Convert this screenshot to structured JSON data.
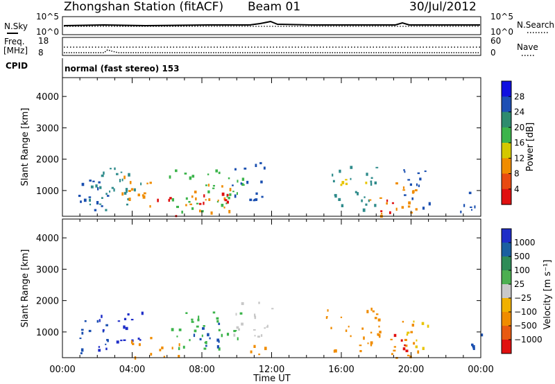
{
  "header": {
    "station": "Zhongshan Station (fitACF)",
    "beam": "Beam 01",
    "date": "30/Jul/2012"
  },
  "status_panels": {
    "nsky_label": "N.Sky",
    "nsky_ticks": [
      "10^5",
      "10^0"
    ],
    "nsearch_label": "N.Search",
    "nsearch_ticks": [
      "10^5",
      "10^0"
    ],
    "freq_label": "Freq.",
    "freq_unit": "[MHz]",
    "freq_ticks": [
      "18",
      "8"
    ],
    "nave_label": "Nave",
    "nave_ticks": [
      "60",
      "0"
    ],
    "cpid_label": "CPID",
    "cpid_text": "normal (fast stereo) 153"
  },
  "colors": {
    "blue": "#1e2dc8",
    "navy": "#1a4fb0",
    "teal": "#2e8b8b",
    "green": "#3cb44b",
    "lime": "#9acd32",
    "yellow": "#e8c400",
    "orange": "#f08c00",
    "darkorange": "#e8581a",
    "red": "#e01010",
    "gray": "#c8c8c8"
  },
  "chart_data": [
    {
      "type": "heatmap",
      "name": "power",
      "ylabel": "Slant Range [km]",
      "xlabel": "Time UT",
      "xticks": [
        "00:00",
        "04:00",
        "08:00",
        "12:00",
        "16:00",
        "20:00",
        "00:00"
      ],
      "yticks": [
        "1000",
        "2000",
        "3000",
        "4000"
      ],
      "ylim": [
        180,
        4600
      ],
      "xlim": [
        0,
        24
      ],
      "colorbar": {
        "label": "Power [dB]",
        "ticks": [
          "4",
          "8",
          "12",
          "16",
          "20",
          "24",
          "28"
        ],
        "colors": [
          "#1010e0",
          "#1e50b4",
          "#2e8b6e",
          "#3cb44b",
          "#d4c800",
          "#f08c00",
          "#e84a10",
          "#e01010"
        ]
      },
      "blobs": [
        {
          "t0": 0.7,
          "t1": 2.6,
          "r0": 300,
          "r1": 1500,
          "color": "navy"
        },
        {
          "t0": 1.2,
          "t1": 4.8,
          "r0": 400,
          "r1": 1800,
          "color": "teal"
        },
        {
          "t0": 3.3,
          "t1": 5.5,
          "r0": 500,
          "r1": 1600,
          "color": "orange"
        },
        {
          "t0": 5.2,
          "t1": 6.5,
          "r0": 200,
          "r1": 800,
          "color": "red"
        },
        {
          "t0": 6.0,
          "t1": 10.4,
          "r0": 300,
          "r1": 1700,
          "color": "green"
        },
        {
          "t0": 7.0,
          "t1": 9.8,
          "r0": 300,
          "r1": 1300,
          "color": "orange"
        },
        {
          "t0": 7.5,
          "t1": 9.5,
          "r0": 600,
          "r1": 1200,
          "color": "red"
        },
        {
          "t0": 9.7,
          "t1": 12.0,
          "r0": 700,
          "r1": 2000,
          "color": "navy"
        },
        {
          "t0": 15.0,
          "t1": 18.0,
          "r0": 400,
          "r1": 1800,
          "color": "teal"
        },
        {
          "t0": 15.8,
          "t1": 17.4,
          "r0": 900,
          "r1": 1500,
          "color": "yellow"
        },
        {
          "t0": 17.6,
          "t1": 20.4,
          "r0": 200,
          "r1": 1300,
          "color": "orange"
        },
        {
          "t0": 18.2,
          "t1": 19.6,
          "r0": 250,
          "r1": 800,
          "color": "red"
        },
        {
          "t0": 19.5,
          "t1": 21.2,
          "r0": 400,
          "r1": 1800,
          "color": "navy"
        },
        {
          "t0": 22.8,
          "t1": 24.0,
          "r0": 300,
          "r1": 1200,
          "color": "navy"
        }
      ]
    },
    {
      "type": "heatmap",
      "name": "velocity",
      "ylabel": "Slant Range [km]",
      "xlabel": "Time UT",
      "xticks": [
        "00:00",
        "04:00",
        "08:00",
        "12:00",
        "16:00",
        "20:00",
        "00:00"
      ],
      "yticks": [
        "1000",
        "2000",
        "3000",
        "4000"
      ],
      "ylim": [
        180,
        4600
      ],
      "xlim": [
        0,
        24
      ],
      "colorbar": {
        "label": "Velocity [m s⁻¹]",
        "ticks": [
          "1000",
          "500",
          "100",
          "25",
          "−25",
          "−100",
          "−500",
          "−1000"
        ],
        "colors": [
          "#1e2dc8",
          "#1a5fa0",
          "#2e8b57",
          "#4caf50",
          "#c8c8c8",
          "#f0b000",
          "#f08c00",
          "#e85a10",
          "#e01010"
        ]
      },
      "blobs": [
        {
          "t0": 0.7,
          "t1": 2.6,
          "r0": 300,
          "r1": 1500,
          "color": "navy"
        },
        {
          "t0": 2.0,
          "t1": 4.6,
          "r0": 400,
          "r1": 1700,
          "color": "blue"
        },
        {
          "t0": 3.8,
          "t1": 6.8,
          "r0": 200,
          "r1": 900,
          "color": "orange"
        },
        {
          "t0": 6.2,
          "t1": 10.3,
          "r0": 400,
          "r1": 1700,
          "color": "green"
        },
        {
          "t0": 7.2,
          "t1": 9.0,
          "r0": 500,
          "r1": 1500,
          "color": "navy"
        },
        {
          "t0": 9.6,
          "t1": 12.2,
          "r0": 800,
          "r1": 2000,
          "color": "gray"
        },
        {
          "t0": 10.5,
          "t1": 12.0,
          "r0": 200,
          "r1": 700,
          "color": "orange"
        },
        {
          "t0": 15.0,
          "t1": 18.2,
          "r0": 400,
          "r1": 1800,
          "color": "orange"
        },
        {
          "t0": 17.8,
          "t1": 20.5,
          "r0": 200,
          "r1": 1400,
          "color": "orange"
        },
        {
          "t0": 18.6,
          "t1": 19.8,
          "r0": 300,
          "r1": 1000,
          "color": "red"
        },
        {
          "t0": 19.6,
          "t1": 21.0,
          "r0": 500,
          "r1": 1500,
          "color": "yellow"
        },
        {
          "t0": 22.8,
          "t1": 24.0,
          "r0": 300,
          "r1": 1100,
          "color": "navy"
        }
      ]
    }
  ]
}
